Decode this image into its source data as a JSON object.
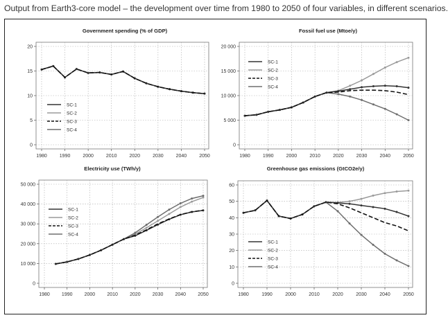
{
  "caption": "Output from Earth3-core model – the development over time from 1980 to 2050 of four variables, in different scenarios.",
  "legend_labels": [
    "SC-1",
    "SC-2",
    "SC-3",
    "SC-4"
  ],
  "series_styles": {
    "SC-1": {
      "color": "#333333",
      "dash": "none"
    },
    "SC-2": {
      "color": "#9a9a9a",
      "dash": "none"
    },
    "SC-3": {
      "color": "#111111",
      "dash": "6,3"
    },
    "SC-4": {
      "color": "#6e6e6e",
      "dash": "none"
    }
  },
  "chart_data": [
    {
      "type": "line",
      "title": "Government spending (% of GDP)",
      "x": [
        1980,
        1985,
        1990,
        1995,
        2000,
        2005,
        2010,
        2015,
        2020,
        2025,
        2030,
        2035,
        2040,
        2045,
        2050
      ],
      "xticks": [
        "1980",
        "1990",
        "2000",
        "2010",
        "2020",
        "2030",
        "2040",
        "2050"
      ],
      "yticks": [
        "0",
        "5",
        "10",
        "15",
        "20"
      ],
      "ylim": [
        0,
        20
      ],
      "xlim": [
        1980,
        2050
      ],
      "legend_position": "bottom-left",
      "series": [
        {
          "name": "SC-1",
          "values": [
            15.3,
            16.0,
            13.7,
            15.4,
            14.6,
            14.7,
            14.3,
            14.9,
            13.5,
            12.5,
            11.8,
            11.3,
            10.9,
            10.6,
            10.4
          ]
        },
        {
          "name": "SC-2",
          "values": [
            15.3,
            16.0,
            13.7,
            15.4,
            14.6,
            14.7,
            14.3,
            14.9,
            13.5,
            12.5,
            11.8,
            11.3,
            10.9,
            10.6,
            10.4
          ]
        },
        {
          "name": "SC-3",
          "values": [
            15.3,
            16.0,
            13.7,
            15.4,
            14.6,
            14.7,
            14.3,
            14.9,
            13.5,
            12.5,
            11.8,
            11.3,
            10.9,
            10.6,
            10.4
          ]
        },
        {
          "name": "SC-4",
          "values": [
            15.3,
            16.0,
            13.7,
            15.4,
            14.6,
            14.7,
            14.3,
            14.9,
            13.5,
            12.5,
            11.8,
            11.3,
            10.9,
            10.6,
            10.4
          ]
        }
      ]
    },
    {
      "type": "line",
      "title": "Fossil fuel use (Mtoe/y)",
      "x": [
        1980,
        1985,
        1990,
        1995,
        2000,
        2005,
        2010,
        2015,
        2020,
        2025,
        2030,
        2035,
        2040,
        2045,
        2050
      ],
      "xticks": [
        "1980",
        "1990",
        "2000",
        "2010",
        "2020",
        "2030",
        "2040",
        "2050"
      ],
      "yticks": [
        "0",
        "5 000",
        "10 000",
        "15 000",
        "20 000"
      ],
      "ylim": [
        0,
        20000
      ],
      "xlim": [
        1980,
        2050
      ],
      "legend_position": "top-left",
      "series": [
        {
          "name": "SC-1",
          "values": [
            5900,
            6100,
            6700,
            7100,
            7600,
            8600,
            9800,
            10600,
            10900,
            11300,
            11700,
            11900,
            12000,
            11900,
            11600
          ]
        },
        {
          "name": "SC-2",
          "values": [
            5900,
            6100,
            6700,
            7100,
            7600,
            8600,
            9800,
            10600,
            11000,
            12000,
            13100,
            14400,
            15700,
            16800,
            17700
          ]
        },
        {
          "name": "SC-3",
          "values": [
            5900,
            6100,
            6700,
            7100,
            7600,
            8600,
            9800,
            10600,
            10700,
            11000,
            11100,
            11100,
            11000,
            10700,
            10200
          ]
        },
        {
          "name": "SC-4",
          "values": [
            5900,
            6100,
            6700,
            7100,
            7600,
            8600,
            9800,
            10600,
            10300,
            9800,
            9100,
            8200,
            7300,
            6200,
            5000
          ]
        }
      ]
    },
    {
      "type": "line",
      "title": "Electricity use (TWh/y)",
      "x": [
        1985,
        1990,
        1995,
        2000,
        2005,
        2010,
        2015,
        2020,
        2025,
        2030,
        2035,
        2040,
        2045,
        2050
      ],
      "xticks": [
        "1980",
        "1990",
        "2000",
        "2010",
        "2020",
        "2030",
        "2040",
        "2050"
      ],
      "yticks": [
        "0",
        "10 000",
        "20 000",
        "30 000",
        "40 000",
        "50 000"
      ],
      "ylim": [
        0,
        50000
      ],
      "xlim": [
        1980,
        2050
      ],
      "legend_position": "left",
      "series": [
        {
          "name": "SC-1",
          "values": [
            9800,
            10800,
            12300,
            14300,
            16700,
            19500,
            22300,
            24000,
            26700,
            29600,
            32300,
            34600,
            36000,
            36800
          ]
        },
        {
          "name": "SC-2",
          "values": [
            9800,
            10800,
            12300,
            14300,
            16700,
            19500,
            22300,
            24800,
            28000,
            31500,
            35000,
            38500,
            41200,
            43300
          ]
        },
        {
          "name": "SC-3",
          "values": [
            9800,
            10800,
            12300,
            14300,
            16700,
            19500,
            22300,
            24300,
            27000,
            30000,
            32500,
            34700,
            36100,
            36900
          ]
        },
        {
          "name": "SC-4",
          "values": [
            9800,
            10800,
            12300,
            14300,
            16700,
            19500,
            22300,
            25500,
            29500,
            33500,
            37200,
            40400,
            42800,
            44200
          ]
        }
      ]
    },
    {
      "type": "line",
      "title": "Greenhouse gas emissions (GtCO2e/y)",
      "x": [
        1980,
        1985,
        1990,
        1995,
        2000,
        2005,
        2010,
        2015,
        2020,
        2025,
        2030,
        2035,
        2040,
        2045,
        2050
      ],
      "xticks": [
        "1980",
        "1990",
        "2000",
        "2010",
        "2020",
        "2030",
        "2040",
        "2050"
      ],
      "yticks": [
        "0",
        "10",
        "20",
        "30",
        "40",
        "50",
        "60"
      ],
      "ylim": [
        0,
        60
      ],
      "xlim": [
        1980,
        2050
      ],
      "legend_position": "bottom-left",
      "series": [
        {
          "name": "SC-1",
          "values": [
            43,
            44.5,
            50.5,
            41,
            39.5,
            42,
            47,
            49.5,
            49,
            48.5,
            47.5,
            46.5,
            45.5,
            43.5,
            41
          ]
        },
        {
          "name": "SC-2",
          "values": [
            43,
            44.5,
            50.5,
            41,
            39.5,
            42,
            47,
            49.5,
            49.3,
            50,
            51.5,
            53.5,
            55,
            56,
            56.5
          ]
        },
        {
          "name": "SC-3",
          "values": [
            43,
            44.5,
            50.5,
            41,
            39.5,
            42,
            47,
            49.5,
            48.5,
            46,
            43,
            40,
            37,
            35,
            32
          ]
        },
        {
          "name": "SC-4",
          "values": [
            43,
            44.5,
            50.5,
            41,
            39.5,
            42,
            47,
            49.5,
            44,
            36.5,
            29.5,
            23.5,
            18,
            14,
            10.5
          ]
        }
      ]
    }
  ]
}
